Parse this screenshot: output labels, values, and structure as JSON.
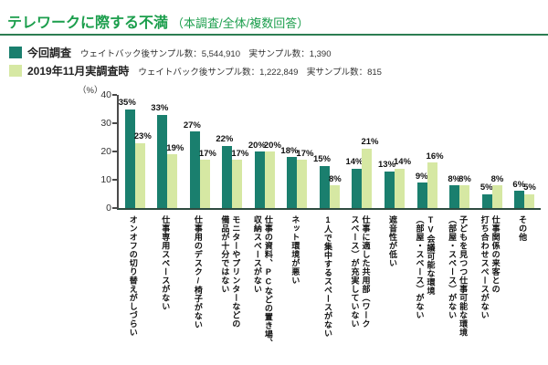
{
  "title": {
    "main": "テレワークに際する不満",
    "sub": "（本調査/全体/複数回答）"
  },
  "legend": [
    {
      "label": "今回調査",
      "detail": "ウェイトバック後サンプル数：5,544,910　実サンプル数：1,390",
      "color": "#1a7f6e"
    },
    {
      "label": "2019年11月実調査時",
      "detail": "ウェイトバック後サンプル数：1,222,849　実サンプル数：815",
      "color": "#d6e8a3"
    }
  ],
  "chart_data": {
    "type": "bar",
    "title": "テレワークに際する不満（本調査/全体/複数回答）",
    "unit_label": "（%）",
    "ylim": [
      0,
      40
    ],
    "yticks": [
      0,
      10,
      20,
      30,
      40
    ],
    "grid": false,
    "legend_position": "top-left",
    "value_suffix": "%",
    "categories": [
      "オンオフの切り替えがしづらい",
      "仕事専用スペースがない",
      "仕事用のデスク/椅子がない",
      "モニターやプリンターなどの\n備品が十分ではない",
      "仕事の資料、PCなどの置き場、\n収納スペースがない",
      "ネット環境が悪い",
      "1人で集中するスペースがない",
      "仕事に適した共用部（ワーク\nスペース）が充実していない",
      "遮音性が低い",
      "TV会議可能な環境\n（部屋・スペース）がない",
      "子どもを見つつ仕事可能な環境\n（部屋・スペース）がない",
      "仕事関係の来客との\n打ち合わせスペースがない",
      "その他"
    ],
    "series": [
      {
        "name": "今回調査",
        "color": "#1a7f6e",
        "values": [
          35,
          33,
          27,
          22,
          20,
          18,
          15,
          14,
          13,
          9,
          8,
          5,
          6
        ]
      },
      {
        "name": "2019年11月実調査時",
        "color": "#d6e8a3",
        "values": [
          23,
          19,
          17,
          17,
          20,
          17,
          8,
          21,
          14,
          16,
          8,
          8,
          5
        ]
      }
    ]
  },
  "colors": {
    "title_green": "#1b9e4c",
    "rule_green": "#2c7d52",
    "axis": "#4a4a4a",
    "baseline": "#2e4b40",
    "value_text": "#111111"
  }
}
